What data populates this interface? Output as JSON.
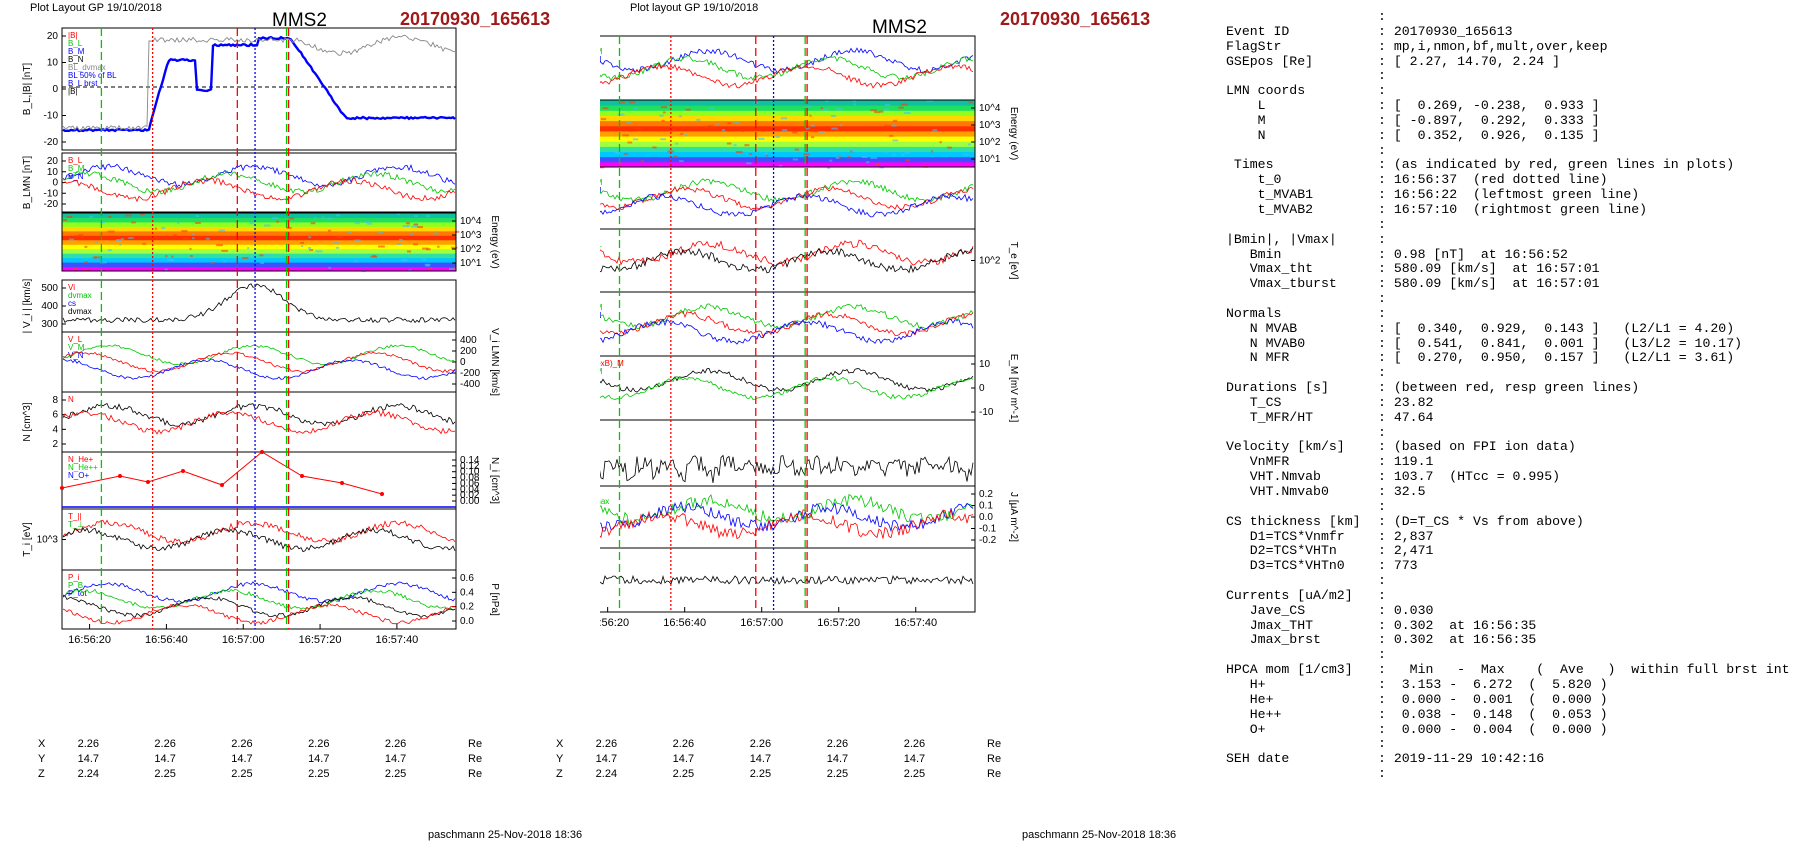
{
  "header": {
    "left_generator": "Plot Layout GP 19/10/2018",
    "right_generator": "Plot layout GP 19/10/2018",
    "spacecraft": "MMS2",
    "event_id": "20170930_165613"
  },
  "footer": {
    "left_signature": "paschmann 25-Nov-2018 18:36",
    "right_signature": "paschmann 25-Nov-2018 18:36"
  },
  "colors": {
    "red": "#ff0000",
    "green": "#00c800",
    "blue": "#0000ff",
    "black": "#000000",
    "gray": "#888888",
    "event_red": "#a01818"
  },
  "time_axis": {
    "ticks": [
      "16:56:20",
      "16:56:40",
      "16:57:00",
      "16:57:20",
      "16:57:40"
    ]
  },
  "positions": {
    "rows": [
      {
        "label": "X",
        "values": [
          "2.26",
          "2.26",
          "2.26",
          "2.26",
          "2.26"
        ],
        "unit": "Re"
      },
      {
        "label": "Y",
        "values": [
          "14.7",
          "14.7",
          "14.7",
          "14.7",
          "14.7"
        ],
        "unit": "Re"
      },
      {
        "label": "Z",
        "values": [
          "2.24",
          "2.25",
          "2.25",
          "2.25",
          "2.25"
        ],
        "unit": "Re"
      }
    ]
  },
  "chart_data": [
    {
      "type": "line",
      "title": "MMS2 20170930_165613 (left column)",
      "panels": [
        {
          "ylabel": "B_L,|B| [nT]",
          "yticks": [
            "20",
            "10",
            "0",
            "-10",
            "-20"
          ],
          "legend": [
            "|B|",
            "B_L",
            "B_M",
            "B_N",
            "BL_dvmax",
            "BL 50% of BL",
            "B_L brst",
            "|B|"
          ]
        },
        {
          "ylabel": "B_LMN [nT]",
          "yticks": [
            "20",
            "10",
            "0",
            "-10",
            "-20"
          ],
          "legend": [
            "B_L",
            "B_M",
            "B_N"
          ]
        },
        {
          "type": "heatmap",
          "ylabel_right": "Energy (eV)",
          "yticks_right": [
            "10^4",
            "10^3",
            "10^2",
            "10^1"
          ]
        },
        {
          "ylabel": "| V_i | [km/s]",
          "yticks": [
            "500",
            "400",
            "300"
          ],
          "legend": [
            "Vi",
            "dvmax",
            "cs",
            "dvmax"
          ]
        },
        {
          "ylabel_right": "V_i LMN [km/s]",
          "yticks_right": [
            "400",
            "200",
            "0",
            "-200",
            "-400"
          ],
          "legend": [
            "V_L",
            "V_M",
            "V_N"
          ]
        },
        {
          "ylabel": "N [cm^3]",
          "yticks": [
            "8",
            "6",
            "4",
            "2"
          ],
          "legend": [
            "N"
          ]
        },
        {
          "ylabel_right": "N_i [cm^3]",
          "yticks_right": [
            "0.14",
            "0.12",
            "0.10",
            "0.08",
            "0.06",
            "0.04",
            "0.02",
            "0.00"
          ],
          "legend": [
            "N_He+",
            "N_He++",
            "N_O+"
          ]
        },
        {
          "ylabel": "T_i [eV]",
          "yticks": [
            "10^3"
          ],
          "legend": [
            "T_||",
            "T_⊥"
          ]
        },
        {
          "ylabel_right": "P [nPa]",
          "yticks_right": [
            "0.6",
            "0.4",
            "0.2",
            "0.0"
          ],
          "legend": [
            "P_i",
            "P_B",
            "P_tot"
          ]
        }
      ]
    },
    {
      "type": "line",
      "title": "MMS2 20170930_165613 (middle column)",
      "panels": [
        {
          "ylabel": "B_LMN [nT]",
          "yticks": [
            "20",
            "10",
            "0",
            "-10",
            "-20"
          ],
          "legend": [
            "B_L",
            "B_M",
            "B_N"
          ]
        },
        {
          "type": "heatmap",
          "ylabel_right": "Energy (eV)",
          "yticks_right": [
            "10^4",
            "10^3",
            "10^2",
            "10^1"
          ]
        },
        {
          "ylabel": "V_e LMN [km/s]",
          "yticks": [
            "600",
            "400",
            "200",
            "0",
            "-200",
            "-400",
            "-600",
            "-800"
          ],
          "legend": [
            "V_L",
            "V_M",
            "V_N"
          ]
        },
        {
          "ylabel_right": "T_e [eV]",
          "yticks_right": [
            "10^2"
          ],
          "legend": [
            "T_||",
            "T_⊥"
          ]
        },
        {
          "ylabel": "E_LMN [mV m^-1]",
          "yticks": [
            "10",
            "5",
            "0",
            "-5",
            "-10"
          ],
          "legend": [
            "E_L",
            "E_M",
            "E_N"
          ]
        },
        {
          "ylabel_right": "E_M [mV m^-1]",
          "yticks_right": [
            "10",
            "0",
            "-10"
          ],
          "legend": [
            "-(VexB)_M",
            "E_M"
          ]
        },
        {
          "ylabel": "|J| [μA m^-2]",
          "yticks": [
            "0.30",
            "0.25",
            "0.20",
            "0.15",
            "0.10",
            "0.05"
          ],
          "legend": [
            "|J|"
          ]
        },
        {
          "ylabel_right": "J [μA m^-2]",
          "yticks_right": [
            "0.2",
            "0.1",
            "0.0",
            "-0.1",
            "-0.2"
          ],
          "legend": [
            "J",
            "|J|max"
          ]
        },
        {
          "ylabel": "J*E' [nW m^-3]",
          "yticks": [
            "0.2",
            "0.0",
            "-0.2",
            "-0.4"
          ],
          "legend": [
            "J*E'"
          ]
        }
      ]
    }
  ],
  "summary": [
    {
      "k": "",
      "v": ":"
    },
    {
      "k": "Event ID",
      "v": ": 20170930_165613"
    },
    {
      "k": "FlagStr",
      "v": ": mp,i,nmon,bf,mult,over,keep"
    },
    {
      "k": "GSEpos [Re]",
      "v": ": [ 2.27, 14.70, 2.24 ]"
    },
    {
      "k": "",
      "v": ":"
    },
    {
      "k": "LMN coords",
      "v": ":"
    },
    {
      "k": "    L",
      "v": ": [  0.269, -0.238,  0.933 ]"
    },
    {
      "k": "    M",
      "v": ": [ -0.897,  0.292,  0.333 ]"
    },
    {
      "k": "    N",
      "v": ": [  0.352,  0.926,  0.135 ]"
    },
    {
      "k": "",
      "v": ":"
    },
    {
      "k": " Times",
      "v": ": (as indicated by red, green lines in plots)"
    },
    {
      "k": "    t_0",
      "v": ": 16:56:37  (red dotted line)"
    },
    {
      "k": "    t_MVAB1",
      "v": ": 16:56:22  (leftmost green line)"
    },
    {
      "k": "    t_MVAB2",
      "v": ": 16:57:10  (rightmost green line)"
    },
    {
      "k": "",
      "v": ":"
    },
    {
      "k": "|Bmin|, |Vmax|",
      "v": ":"
    },
    {
      "k": "   Bmin",
      "v": ": 0.98 [nT]  at 16:56:52"
    },
    {
      "k": "   Vmax_tht",
      "v": ": 580.09 [km/s]  at 16:57:01"
    },
    {
      "k": "   Vmax_tburst",
      "v": ": 580.09 [km/s]  at 16:57:01"
    },
    {
      "k": "",
      "v": ":"
    },
    {
      "k": "Normals",
      "v": ":"
    },
    {
      "k": "   N MVAB",
      "v": ": [  0.340,  0.929,  0.143 ]   (L2/L1 = 4.20)"
    },
    {
      "k": "   N MVAB0",
      "v": ": [  0.541,  0.841,  0.001 ]   (L3/L2 = 10.17)"
    },
    {
      "k": "   N MFR",
      "v": ": [  0.270,  0.950,  0.157 ]   (L2/L1 = 3.61)"
    },
    {
      "k": "",
      "v": ":"
    },
    {
      "k": "Durations [s]",
      "v": ": (between red, resp green lines)"
    },
    {
      "k": "   T_CS",
      "v": ": 23.82"
    },
    {
      "k": "   T_MFR/HT",
      "v": ": 47.64"
    },
    {
      "k": "",
      "v": ":"
    },
    {
      "k": "Velocity [km/s]",
      "v": ": (based on FPI ion data)"
    },
    {
      "k": "   VnMFR",
      "v": ": 119.1"
    },
    {
      "k": "   VHT.Nmvab",
      "v": ": 103.7  (HTcc = 0.995)"
    },
    {
      "k": "   VHT.Nmvab0",
      "v": ": 32.5"
    },
    {
      "k": "",
      "v": ":"
    },
    {
      "k": "CS thickness [km]",
      "v": ": (D=T_CS * Vs from above)"
    },
    {
      "k": "   D1=TCS*Vnmfr",
      "v": ": 2,837"
    },
    {
      "k": "   D2=TCS*VHTn",
      "v": ": 2,471"
    },
    {
      "k": "   D3=TCS*VHTn0",
      "v": ": 773"
    },
    {
      "k": "",
      "v": ":"
    },
    {
      "k": "Currents [uA/m2]",
      "v": ":"
    },
    {
      "k": "   Jave_CS",
      "v": ": 0.030"
    },
    {
      "k": "   Jmax_THT",
      "v": ": 0.302  at 16:56:35"
    },
    {
      "k": "   Jmax_brst",
      "v": ": 0.302  at 16:56:35"
    },
    {
      "k": "",
      "v": ":"
    },
    {
      "k": "HPCA mom [1/cm3]",
      "v": ":   Min   -  Max    (  Ave   )  within full brst int"
    },
    {
      "k": "   H+",
      "v": ":  3.153 -  6.272  (  5.820 )"
    },
    {
      "k": "   He+",
      "v": ":  0.000 -  0.001  (  0.000 )"
    },
    {
      "k": "   He++",
      "v": ":  0.038 -  0.148  (  0.053 )"
    },
    {
      "k": "   O+",
      "v": ":  0.000 -  0.004  (  0.000 )"
    },
    {
      "k": "",
      "v": ":"
    },
    {
      "k": "SEH date",
      "v": ": 2019-11-29 10:42:16"
    },
    {
      "k": "",
      "v": ":"
    }
  ]
}
